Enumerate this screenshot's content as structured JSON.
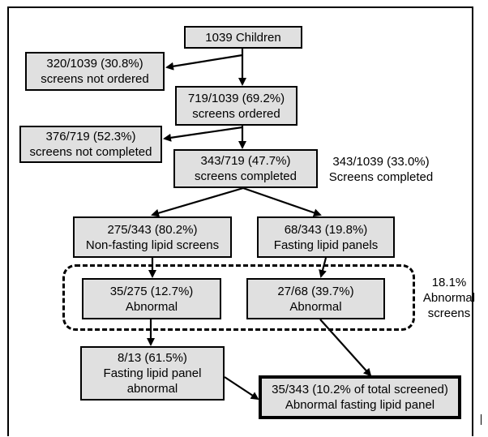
{
  "boxes": {
    "children": {
      "line1": "1039 Children"
    },
    "not_ordered": {
      "line1": "320/1039 (30.8%)",
      "line2": "screens not ordered"
    },
    "ordered": {
      "line1": "719/1039 (69.2%)",
      "line2": "screens ordered"
    },
    "not_completed": {
      "line1": "376/719  (52.3%)",
      "line2": "screens not completed"
    },
    "completed": {
      "line1": "343/719  (47.7%)",
      "line2": "screens completed"
    },
    "nonfasting": {
      "line1": "275/343 (80.2%)",
      "line2": "Non-fasting lipid screens"
    },
    "fasting": {
      "line1": "68/343 (19.8%)",
      "line2": "Fasting lipid panels"
    },
    "abn_nonfasting": {
      "line1": "35/275 (12.7%)",
      "line2": "Abnormal"
    },
    "abn_fasting": {
      "line1": "27/68 (39.7%)",
      "line2": "Abnormal"
    },
    "fasting_abn": {
      "line1": "8/13 (61.5%)",
      "line2": "Fasting lipid panel",
      "line3": "abnormal"
    },
    "total_abn": {
      "line1": "35/343 (10.2% of total screened)",
      "line2": "Abnormal fasting lipid panel"
    }
  },
  "notes": {
    "screens_completed": {
      "line1": "343/1039 (33.0%)",
      "line2": "Screens completed"
    },
    "abnormal_screens": {
      "line1": "18.1%",
      "line2": "Abnormal",
      "line3": "screens"
    }
  }
}
